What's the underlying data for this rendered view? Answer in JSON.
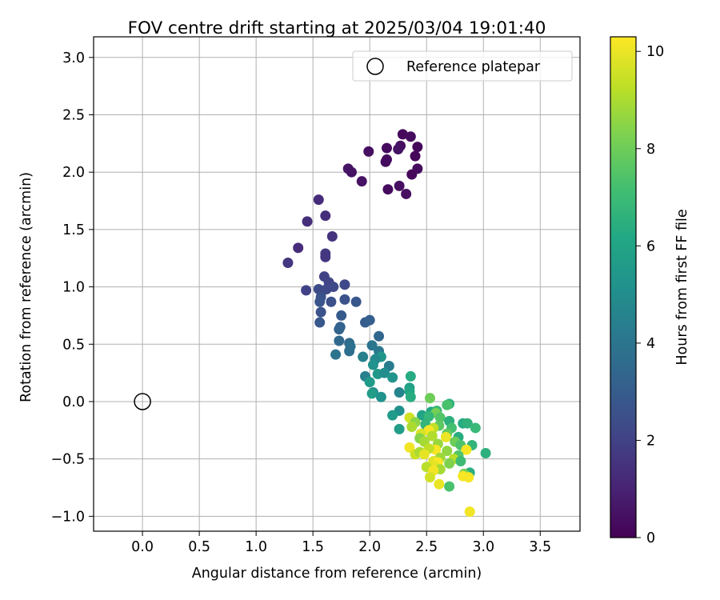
{
  "chart_data": {
    "type": "scatter",
    "title": "FOV centre drift starting at 2025/03/04 19:01:40",
    "xlabel": "Angular distance from reference (arcmin)",
    "ylabel": "Rotation from reference (arcmin)",
    "xlim": [
      -0.43,
      3.85
    ],
    "ylim": [
      -1.13,
      3.18
    ],
    "xticks": [
      "0.0",
      "0.5",
      "1.0",
      "1.5",
      "2.0",
      "2.5",
      "3.0",
      "3.5"
    ],
    "xtick_values": [
      0,
      0.5,
      1,
      1.5,
      2,
      2.5,
      3,
      3.5
    ],
    "yticks": [
      "−1.0",
      "−0.5",
      "0.0",
      "0.5",
      "1.0",
      "1.5",
      "2.0",
      "2.5",
      "3.0"
    ],
    "ytick_values": [
      -1,
      -0.5,
      0,
      0.5,
      1,
      1.5,
      2,
      2.5,
      3
    ],
    "grid": true,
    "legend": {
      "placement": "top-right",
      "label": "Reference platepar"
    },
    "reference_point": {
      "x": 0.0,
      "y": 0.0
    },
    "colorbar": {
      "label": "Hours from first FF file",
      "colormap": "viridis",
      "range": [
        0,
        10.3
      ],
      "ticks": [
        "0",
        "2",
        "4",
        "6",
        "8",
        "10"
      ],
      "tick_values": [
        0,
        2,
        4,
        6,
        8,
        10
      ]
    },
    "points": [
      {
        "x": 2.29,
        "y": 2.33,
        "h": 0.2
      },
      {
        "x": 2.36,
        "y": 2.31,
        "h": 0.3
      },
      {
        "x": 2.42,
        "y": 2.22,
        "h": 0.2
      },
      {
        "x": 2.27,
        "y": 2.23,
        "h": 0.4
      },
      {
        "x": 2.25,
        "y": 2.2,
        "h": 0.5
      },
      {
        "x": 2.15,
        "y": 2.21,
        "h": 0.3
      },
      {
        "x": 2.15,
        "y": 2.11,
        "h": 0.4
      },
      {
        "x": 2.14,
        "y": 2.09,
        "h": 0.3
      },
      {
        "x": 1.99,
        "y": 2.18,
        "h": 0.4
      },
      {
        "x": 2.4,
        "y": 2.14,
        "h": 0.2
      },
      {
        "x": 2.42,
        "y": 2.03,
        "h": 0.3
      },
      {
        "x": 2.37,
        "y": 1.98,
        "h": 0.2
      },
      {
        "x": 1.81,
        "y": 2.03,
        "h": 0.6
      },
      {
        "x": 1.84,
        "y": 2.0,
        "h": 0.5
      },
      {
        "x": 1.93,
        "y": 1.92,
        "h": 0.5
      },
      {
        "x": 2.26,
        "y": 1.88,
        "h": 0.4
      },
      {
        "x": 2.16,
        "y": 1.85,
        "h": 0.3
      },
      {
        "x": 2.32,
        "y": 1.81,
        "h": 0.4
      },
      {
        "x": 1.55,
        "y": 1.76,
        "h": 1.3
      },
      {
        "x": 1.61,
        "y": 1.62,
        "h": 1.4
      },
      {
        "x": 1.45,
        "y": 1.57,
        "h": 1.4
      },
      {
        "x": 1.67,
        "y": 1.44,
        "h": 1.5
      },
      {
        "x": 1.37,
        "y": 1.34,
        "h": 1.3
      },
      {
        "x": 1.61,
        "y": 1.29,
        "h": 1.7
      },
      {
        "x": 1.61,
        "y": 1.26,
        "h": 1.6
      },
      {
        "x": 1.28,
        "y": 1.21,
        "h": 1.6
      },
      {
        "x": 1.6,
        "y": 1.09,
        "h": 2.0
      },
      {
        "x": 1.64,
        "y": 1.04,
        "h": 2.1
      },
      {
        "x": 1.78,
        "y": 1.02,
        "h": 2.2
      },
      {
        "x": 1.68,
        "y": 1.0,
        "h": 2.3
      },
      {
        "x": 1.55,
        "y": 0.98,
        "h": 2.4
      },
      {
        "x": 1.62,
        "y": 0.98,
        "h": 2.2
      },
      {
        "x": 1.44,
        "y": 0.97,
        "h": 2.0
      },
      {
        "x": 1.58,
        "y": 0.96,
        "h": 2.3
      },
      {
        "x": 1.57,
        "y": 0.91,
        "h": 2.6
      },
      {
        "x": 1.56,
        "y": 0.87,
        "h": 2.7
      },
      {
        "x": 1.66,
        "y": 0.87,
        "h": 2.5
      },
      {
        "x": 1.78,
        "y": 0.89,
        "h": 2.6
      },
      {
        "x": 1.88,
        "y": 0.87,
        "h": 2.8
      },
      {
        "x": 1.57,
        "y": 0.78,
        "h": 2.6
      },
      {
        "x": 1.75,
        "y": 0.75,
        "h": 2.9
      },
      {
        "x": 1.96,
        "y": 0.69,
        "h": 3.0
      },
      {
        "x": 2.0,
        "y": 0.71,
        "h": 3.1
      },
      {
        "x": 1.56,
        "y": 0.69,
        "h": 2.8
      },
      {
        "x": 1.74,
        "y": 0.65,
        "h": 3.2
      },
      {
        "x": 1.73,
        "y": 0.63,
        "h": 3.3
      },
      {
        "x": 2.08,
        "y": 0.57,
        "h": 3.4
      },
      {
        "x": 1.73,
        "y": 0.53,
        "h": 3.5
      },
      {
        "x": 1.82,
        "y": 0.51,
        "h": 3.6
      },
      {
        "x": 1.83,
        "y": 0.48,
        "h": 3.8
      },
      {
        "x": 2.02,
        "y": 0.49,
        "h": 4.0
      },
      {
        "x": 1.82,
        "y": 0.44,
        "h": 3.7
      },
      {
        "x": 2.08,
        "y": 0.44,
        "h": 4.1
      },
      {
        "x": 1.7,
        "y": 0.41,
        "h": 3.9
      },
      {
        "x": 2.1,
        "y": 0.39,
        "h": 5.4
      },
      {
        "x": 1.94,
        "y": 0.39,
        "h": 4.5
      },
      {
        "x": 2.05,
        "y": 0.37,
        "h": 4.8
      },
      {
        "x": 2.03,
        "y": 0.32,
        "h": 5.2
      },
      {
        "x": 2.17,
        "y": 0.31,
        "h": 4.3
      },
      {
        "x": 2.07,
        "y": 0.24,
        "h": 5.5
      },
      {
        "x": 2.13,
        "y": 0.25,
        "h": 5.0
      },
      {
        "x": 2.36,
        "y": 0.22,
        "h": 6.3
      },
      {
        "x": 1.96,
        "y": 0.22,
        "h": 4.4
      },
      {
        "x": 2.2,
        "y": 0.21,
        "h": 5.3
      },
      {
        "x": 2.0,
        "y": 0.17,
        "h": 5.6
      },
      {
        "x": 2.35,
        "y": 0.12,
        "h": 5.8
      },
      {
        "x": 2.35,
        "y": 0.09,
        "h": 6.1
      },
      {
        "x": 2.26,
        "y": 0.08,
        "h": 4.6
      },
      {
        "x": 2.03,
        "y": 0.08,
        "h": 4.9
      },
      {
        "x": 2.02,
        "y": 0.07,
        "h": 5.7
      },
      {
        "x": 2.1,
        "y": 0.04,
        "h": 5.2
      },
      {
        "x": 2.36,
        "y": 0.04,
        "h": 6.4
      },
      {
        "x": 2.53,
        "y": 0.03,
        "h": 8.0
      },
      {
        "x": 2.7,
        "y": -0.02,
        "h": 6.6
      },
      {
        "x": 2.68,
        "y": -0.03,
        "h": 7.3
      },
      {
        "x": 2.59,
        "y": -0.08,
        "h": 6.9
      },
      {
        "x": 2.26,
        "y": -0.08,
        "h": 5.1
      },
      {
        "x": 2.54,
        "y": -0.09,
        "h": 6.2
      },
      {
        "x": 2.58,
        "y": -0.1,
        "h": 8.1
      },
      {
        "x": 2.2,
        "y": -0.12,
        "h": 5.6
      },
      {
        "x": 2.35,
        "y": -0.14,
        "h": 9.6
      },
      {
        "x": 2.46,
        "y": -0.12,
        "h": 6.0
      },
      {
        "x": 2.52,
        "y": -0.13,
        "h": 6.8
      },
      {
        "x": 2.62,
        "y": -0.14,
        "h": 7.5
      },
      {
        "x": 2.7,
        "y": -0.17,
        "h": 6.5
      },
      {
        "x": 2.4,
        "y": -0.18,
        "h": 8.5
      },
      {
        "x": 2.49,
        "y": -0.2,
        "h": 6.7
      },
      {
        "x": 2.82,
        "y": -0.19,
        "h": 6.3
      },
      {
        "x": 2.86,
        "y": -0.19,
        "h": 6.6
      },
      {
        "x": 2.61,
        "y": -0.21,
        "h": 7.7
      },
      {
        "x": 2.37,
        "y": -0.22,
        "h": 9.0
      },
      {
        "x": 2.56,
        "y": -0.23,
        "h": 9.3
      },
      {
        "x": 2.72,
        "y": -0.23,
        "h": 7.2
      },
      {
        "x": 2.93,
        "y": -0.23,
        "h": 6.9
      },
      {
        "x": 2.26,
        "y": -0.24,
        "h": 5.7
      },
      {
        "x": 2.52,
        "y": -0.25,
        "h": 10.2
      },
      {
        "x": 2.45,
        "y": -0.28,
        "h": 9.7
      },
      {
        "x": 2.68,
        "y": -0.28,
        "h": 7.8
      },
      {
        "x": 2.55,
        "y": -0.3,
        "h": 9.1
      },
      {
        "x": 2.44,
        "y": -0.32,
        "h": 8.4
      },
      {
        "x": 2.67,
        "y": -0.31,
        "h": 10.0
      },
      {
        "x": 2.78,
        "y": -0.31,
        "h": 6.4
      },
      {
        "x": 2.48,
        "y": -0.35,
        "h": 8.9
      },
      {
        "x": 2.6,
        "y": -0.37,
        "h": 8.7
      },
      {
        "x": 2.75,
        "y": -0.35,
        "h": 8.0
      },
      {
        "x": 2.8,
        "y": -0.38,
        "h": 7.4
      },
      {
        "x": 2.9,
        "y": -0.38,
        "h": 6.7
      },
      {
        "x": 2.35,
        "y": -0.4,
        "h": 10.1
      },
      {
        "x": 2.58,
        "y": -0.42,
        "h": 10.2
      },
      {
        "x": 2.52,
        "y": -0.41,
        "h": 9.3
      },
      {
        "x": 2.68,
        "y": -0.43,
        "h": 8.6
      },
      {
        "x": 2.85,
        "y": -0.42,
        "h": 10.2
      },
      {
        "x": 2.4,
        "y": -0.46,
        "h": 9.5
      },
      {
        "x": 2.44,
        "y": -0.44,
        "h": 9.0
      },
      {
        "x": 2.48,
        "y": -0.46,
        "h": 9.9
      },
      {
        "x": 2.78,
        "y": -0.47,
        "h": 7.5
      },
      {
        "x": 3.02,
        "y": -0.45,
        "h": 6.5
      },
      {
        "x": 2.62,
        "y": -0.49,
        "h": 8.8
      },
      {
        "x": 2.74,
        "y": -0.5,
        "h": 9.2
      },
      {
        "x": 2.56,
        "y": -0.52,
        "h": 9.8
      },
      {
        "x": 2.8,
        "y": -0.52,
        "h": 7.0
      },
      {
        "x": 2.6,
        "y": -0.53,
        "h": 10.3
      },
      {
        "x": 2.7,
        "y": -0.54,
        "h": 8.3
      },
      {
        "x": 2.57,
        "y": -0.56,
        "h": 9.9
      },
      {
        "x": 2.5,
        "y": -0.57,
        "h": 9.2
      },
      {
        "x": 2.62,
        "y": -0.59,
        "h": 8.9
      },
      {
        "x": 2.56,
        "y": -0.6,
        "h": 10.1
      },
      {
        "x": 2.88,
        "y": -0.62,
        "h": 6.4
      },
      {
        "x": 2.83,
        "y": -0.63,
        "h": 8.1
      },
      {
        "x": 2.82,
        "y": -0.65,
        "h": 10.2
      },
      {
        "x": 2.87,
        "y": -0.66,
        "h": 10.2
      },
      {
        "x": 2.53,
        "y": -0.66,
        "h": 9.6
      },
      {
        "x": 2.61,
        "y": -0.72,
        "h": 10.0
      },
      {
        "x": 2.7,
        "y": -0.74,
        "h": 7.3
      },
      {
        "x": 2.88,
        "y": -0.96,
        "h": 10.1
      }
    ]
  }
}
